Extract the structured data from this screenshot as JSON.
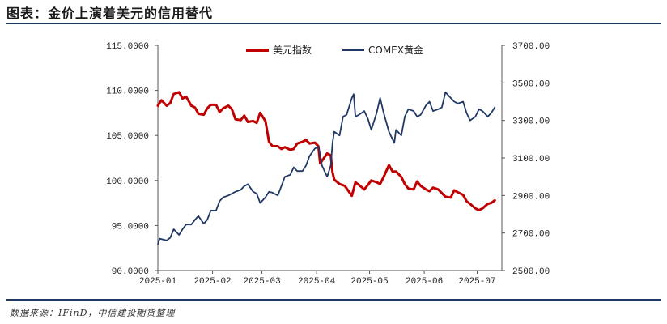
{
  "header": {
    "title": "图表：金价上演着美元的信用替代"
  },
  "footer": {
    "source": "数据来源：IFinD，中信建投期货整理"
  },
  "colors": {
    "dxy": "#c00000",
    "gold": "#1f3864",
    "rule": "#1f3864",
    "axis": "#555555"
  },
  "chart_data": {
    "type": "line",
    "title": "",
    "x_ticks": [
      "2025-01",
      "2025-02",
      "2025-03",
      "2025-04",
      "2025-05",
      "2025-06",
      "2025-07"
    ],
    "y_left": {
      "label": "",
      "range": [
        90,
        115
      ],
      "ticks": [
        "90.0000",
        "95.0000",
        "100.0000",
        "105.0000",
        "110.0000",
        "115.0000"
      ]
    },
    "y_right": {
      "label": "",
      "range": [
        2500,
        3700
      ],
      "ticks": [
        "2500.00",
        "2700.00",
        "2900.00",
        "3100.00",
        "3300.00",
        "3500.00",
        "3700.00"
      ]
    },
    "legend": {
      "placement": "top"
    },
    "series": [
      {
        "name": "美元指数",
        "axis": "left",
        "color": "#c00000",
        "points": [
          [
            "2025-01-01",
            108.3
          ],
          [
            "2025-01-03",
            108.9
          ],
          [
            "2025-01-06",
            108.3
          ],
          [
            "2025-01-08",
            108.6
          ],
          [
            "2025-01-10",
            109.6
          ],
          [
            "2025-01-13",
            109.8
          ],
          [
            "2025-01-15",
            109.1
          ],
          [
            "2025-01-17",
            109.3
          ],
          [
            "2025-01-20",
            108.3
          ],
          [
            "2025-01-22",
            108.1
          ],
          [
            "2025-01-24",
            107.4
          ],
          [
            "2025-01-27",
            107.3
          ],
          [
            "2025-01-29",
            108.0
          ],
          [
            "2025-01-31",
            108.4
          ],
          [
            "2025-02-03",
            108.4
          ],
          [
            "2025-02-05",
            107.6
          ],
          [
            "2025-02-07",
            108.0
          ],
          [
            "2025-02-10",
            108.3
          ],
          [
            "2025-02-12",
            107.9
          ],
          [
            "2025-02-14",
            106.8
          ],
          [
            "2025-02-17",
            106.7
          ],
          [
            "2025-02-19",
            107.2
          ],
          [
            "2025-02-21",
            106.5
          ],
          [
            "2025-02-24",
            106.6
          ],
          [
            "2025-02-26",
            106.4
          ],
          [
            "2025-02-28",
            107.5
          ],
          [
            "2025-03-03",
            106.6
          ],
          [
            "2025-03-05",
            104.3
          ],
          [
            "2025-03-07",
            103.8
          ],
          [
            "2025-03-10",
            103.8
          ],
          [
            "2025-03-12",
            103.5
          ],
          [
            "2025-03-14",
            103.7
          ],
          [
            "2025-03-17",
            103.4
          ],
          [
            "2025-03-19",
            103.5
          ],
          [
            "2025-03-21",
            104.1
          ],
          [
            "2025-03-24",
            104.3
          ],
          [
            "2025-03-26",
            104.5
          ],
          [
            "2025-03-28",
            104.1
          ],
          [
            "2025-03-31",
            104.2
          ],
          [
            "2025-04-02",
            103.8
          ],
          [
            "2025-04-03",
            101.9
          ],
          [
            "2025-04-07",
            103.0
          ],
          [
            "2025-04-09",
            102.8
          ],
          [
            "2025-04-10",
            100.9
          ],
          [
            "2025-04-11",
            100.1
          ],
          [
            "2025-04-14",
            99.6
          ],
          [
            "2025-04-17",
            99.4
          ],
          [
            "2025-04-21",
            98.3
          ],
          [
            "2025-04-23",
            99.8
          ],
          [
            "2025-04-25",
            99.5
          ],
          [
            "2025-04-28",
            99.0
          ],
          [
            "2025-04-30",
            99.5
          ],
          [
            "2025-05-02",
            100.0
          ],
          [
            "2025-05-05",
            99.8
          ],
          [
            "2025-05-07",
            99.6
          ],
          [
            "2025-05-09",
            100.4
          ],
          [
            "2025-05-12",
            101.7
          ],
          [
            "2025-05-14",
            101.0
          ],
          [
            "2025-05-16",
            101.0
          ],
          [
            "2025-05-19",
            100.4
          ],
          [
            "2025-05-21",
            99.6
          ],
          [
            "2025-05-23",
            99.1
          ],
          [
            "2025-05-26",
            99.0
          ],
          [
            "2025-05-28",
            99.9
          ],
          [
            "2025-05-30",
            99.4
          ],
          [
            "2025-06-02",
            99.0
          ],
          [
            "2025-06-04",
            98.8
          ],
          [
            "2025-06-06",
            99.2
          ],
          [
            "2025-06-09",
            99.0
          ],
          [
            "2025-06-11",
            98.6
          ],
          [
            "2025-06-13",
            98.2
          ],
          [
            "2025-06-16",
            98.1
          ],
          [
            "2025-06-18",
            98.9
          ],
          [
            "2025-06-20",
            98.7
          ],
          [
            "2025-06-23",
            98.4
          ],
          [
            "2025-06-25",
            97.7
          ],
          [
            "2025-06-27",
            97.4
          ],
          [
            "2025-06-30",
            96.9
          ],
          [
            "2025-07-02",
            96.7
          ],
          [
            "2025-07-04",
            96.9
          ],
          [
            "2025-07-07",
            97.4
          ],
          [
            "2025-07-09",
            97.5
          ],
          [
            "2025-07-11",
            97.8
          ]
        ]
      },
      {
        "name": "COMEX黄金",
        "axis": "right",
        "color": "#1f3864",
        "points": [
          [
            "2025-01-01",
            2640
          ],
          [
            "2025-01-02",
            2670
          ],
          [
            "2025-01-06",
            2660
          ],
          [
            "2025-01-08",
            2675
          ],
          [
            "2025-01-10",
            2720
          ],
          [
            "2025-01-13",
            2690
          ],
          [
            "2025-01-15",
            2720
          ],
          [
            "2025-01-17",
            2745
          ],
          [
            "2025-01-20",
            2745
          ],
          [
            "2025-01-22",
            2770
          ],
          [
            "2025-01-24",
            2790
          ],
          [
            "2025-01-27",
            2750
          ],
          [
            "2025-01-29",
            2770
          ],
          [
            "2025-01-31",
            2820
          ],
          [
            "2025-02-03",
            2820
          ],
          [
            "2025-02-05",
            2870
          ],
          [
            "2025-02-07",
            2890
          ],
          [
            "2025-02-10",
            2900
          ],
          [
            "2025-02-12",
            2910
          ],
          [
            "2025-02-14",
            2920
          ],
          [
            "2025-02-17",
            2930
          ],
          [
            "2025-02-19",
            2950
          ],
          [
            "2025-02-21",
            2960
          ],
          [
            "2025-02-24",
            2920
          ],
          [
            "2025-02-26",
            2910
          ],
          [
            "2025-02-28",
            2860
          ],
          [
            "2025-03-03",
            2890
          ],
          [
            "2025-03-05",
            2920
          ],
          [
            "2025-03-07",
            2915
          ],
          [
            "2025-03-10",
            2900
          ],
          [
            "2025-03-12",
            2950
          ],
          [
            "2025-03-14",
            3000
          ],
          [
            "2025-03-17",
            3010
          ],
          [
            "2025-03-19",
            3050
          ],
          [
            "2025-03-21",
            3030
          ],
          [
            "2025-03-24",
            3030
          ],
          [
            "2025-03-26",
            3060
          ],
          [
            "2025-03-28",
            3110
          ],
          [
            "2025-03-31",
            3150
          ],
          [
            "2025-04-02",
            3160
          ],
          [
            "2025-04-03",
            3120
          ],
          [
            "2025-04-04",
            3060
          ],
          [
            "2025-04-07",
            3000
          ],
          [
            "2025-04-09",
            3060
          ],
          [
            "2025-04-10",
            3180
          ],
          [
            "2025-04-11",
            3240
          ],
          [
            "2025-04-14",
            3220
          ],
          [
            "2025-04-16",
            3320
          ],
          [
            "2025-04-18",
            3330
          ],
          [
            "2025-04-21",
            3420
          ],
          [
            "2025-04-22",
            3440
          ],
          [
            "2025-04-23",
            3320
          ],
          [
            "2025-04-25",
            3330
          ],
          [
            "2025-04-28",
            3350
          ],
          [
            "2025-04-30",
            3310
          ],
          [
            "2025-05-02",
            3250
          ],
          [
            "2025-05-05",
            3340
          ],
          [
            "2025-05-07",
            3420
          ],
          [
            "2025-05-09",
            3340
          ],
          [
            "2025-05-12",
            3240
          ],
          [
            "2025-05-14",
            3200
          ],
          [
            "2025-05-15",
            3180
          ],
          [
            "2025-05-16",
            3250
          ],
          [
            "2025-05-19",
            3220
          ],
          [
            "2025-05-21",
            3320
          ],
          [
            "2025-05-23",
            3360
          ],
          [
            "2025-05-26",
            3350
          ],
          [
            "2025-05-28",
            3320
          ],
          [
            "2025-05-30",
            3330
          ],
          [
            "2025-06-02",
            3380
          ],
          [
            "2025-06-04",
            3400
          ],
          [
            "2025-06-06",
            3350
          ],
          [
            "2025-06-09",
            3360
          ],
          [
            "2025-06-11",
            3370
          ],
          [
            "2025-06-13",
            3450
          ],
          [
            "2025-06-16",
            3420
          ],
          [
            "2025-06-18",
            3400
          ],
          [
            "2025-06-20",
            3390
          ],
          [
            "2025-06-23",
            3400
          ],
          [
            "2025-06-25",
            3340
          ],
          [
            "2025-06-27",
            3300
          ],
          [
            "2025-06-30",
            3320
          ],
          [
            "2025-07-02",
            3360
          ],
          [
            "2025-07-04",
            3350
          ],
          [
            "2025-07-07",
            3320
          ],
          [
            "2025-07-09",
            3340
          ],
          [
            "2025-07-11",
            3370
          ]
        ]
      }
    ]
  }
}
